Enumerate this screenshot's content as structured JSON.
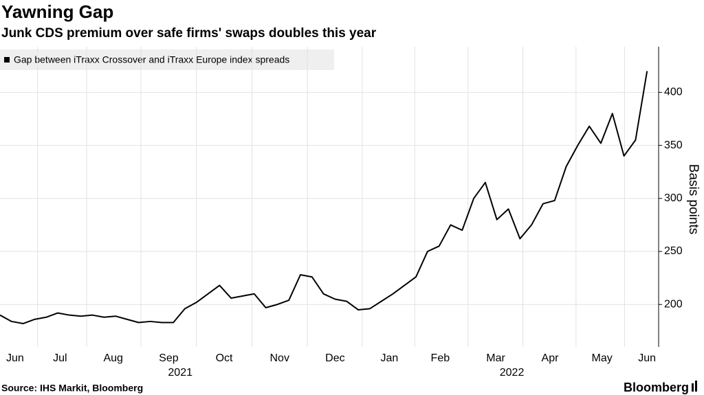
{
  "chart_data": {
    "type": "line",
    "title": "Yawning Gap",
    "subtitle": "Junk CDS premium over safe firms' swaps doubles this year",
    "y_axis_label": "Basis points",
    "source": "Source: IHS Markit, Bloomberg",
    "brand": "Bloomberg",
    "series": [
      {
        "name": "Gap between iTraxx Crossover and iTraxx Europe index spreads",
        "color": "#000000",
        "values": [
          190,
          184,
          182,
          186,
          188,
          192,
          190,
          189,
          190,
          188,
          189,
          186,
          183,
          184,
          183,
          183,
          196,
          202,
          210,
          218,
          206,
          208,
          210,
          197,
          200,
          204,
          228,
          226,
          210,
          205,
          203,
          195,
          196,
          203,
          210,
          218,
          226,
          250,
          255,
          275,
          270,
          300,
          315,
          280,
          290,
          262,
          275,
          295,
          298,
          330,
          350,
          368,
          352,
          380,
          340,
          355,
          420
        ]
      }
    ],
    "xlim": [
      0,
      57
    ],
    "xticks": [
      {
        "value": 1.3,
        "label": "Jun"
      },
      {
        "value": 5.2,
        "label": "Jul"
      },
      {
        "value": 9.8,
        "label": "Aug"
      },
      {
        "value": 14.6,
        "label": "Sep"
      },
      {
        "value": 19.4,
        "label": "Oct"
      },
      {
        "value": 24.2,
        "label": "Nov"
      },
      {
        "value": 29,
        "label": "Dec"
      },
      {
        "value": 33.7,
        "label": "Jan"
      },
      {
        "value": 38.1,
        "label": "Feb"
      },
      {
        "value": 42.9,
        "label": "Mar"
      },
      {
        "value": 47.6,
        "label": "Apr"
      },
      {
        "value": 52.1,
        "label": "May"
      },
      {
        "value": 56,
        "label": "Jun"
      }
    ],
    "year_labels": [
      {
        "value": 15.6,
        "label": "2021"
      },
      {
        "value": 44.3,
        "label": "2022"
      }
    ],
    "ylim": [
      160,
      443
    ],
    "yticks": [
      200,
      250,
      300,
      350,
      400
    ],
    "grid": true,
    "legend": "top-left"
  }
}
